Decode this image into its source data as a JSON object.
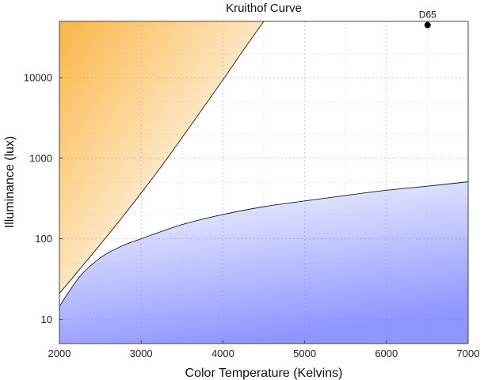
{
  "chart_data": {
    "type": "area",
    "title": "Kruithof Curve",
    "xlabel": "Color Temperature (Kelvins)",
    "ylabel": "Illuminance (lux)",
    "xlim": [
      2000,
      7000
    ],
    "ylim": [
      5,
      50000
    ],
    "yscale": "log",
    "grid": true,
    "x_ticks": [
      2000,
      3000,
      4000,
      5000,
      6000,
      7000
    ],
    "x_tick_labels": [
      "2000",
      "3000",
      "4000",
      "5000",
      "6000",
      "7000"
    ],
    "y_ticks": [
      10,
      100,
      1000,
      10000
    ],
    "y_tick_labels": [
      "10",
      "100",
      "1000",
      "10000"
    ],
    "series": [
      {
        "region": "upper",
        "color": "#f9a825",
        "x": [
          2000,
          2250,
          2500,
          2750,
          3000,
          3250,
          3500,
          3750,
          4000,
          4250,
          4500
        ],
        "values": [
          21,
          42,
          85,
          175,
          370,
          800,
          1800,
          4100,
          9400,
          22000,
          50000
        ]
      },
      {
        "region": "lower",
        "color": "#7b83ff",
        "x": [
          2000,
          2250,
          2500,
          2750,
          3000,
          3500,
          4000,
          4500,
          5000,
          5500,
          6000,
          6500,
          7000
        ],
        "values": [
          14.5,
          34,
          58,
          80,
          100,
          150,
          200,
          250,
          295,
          345,
          400,
          450,
          510
        ]
      }
    ],
    "points": [
      {
        "label": "D65",
        "x": 6504,
        "y": 45000
      }
    ]
  }
}
